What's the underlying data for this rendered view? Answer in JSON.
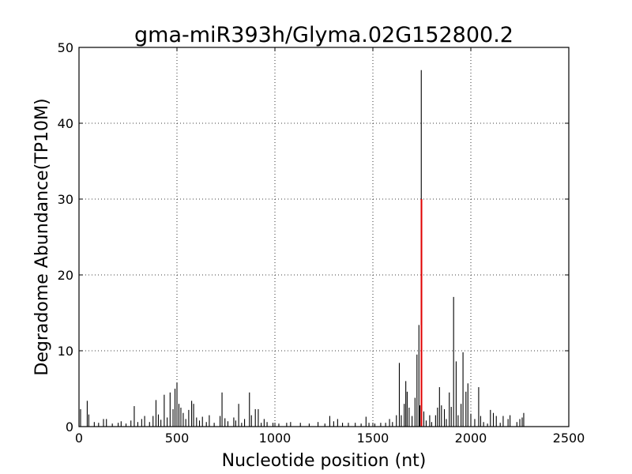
{
  "chart_data": {
    "type": "bar",
    "title": "gma-miR393h/Glyma.02G152800.2",
    "xlabel": "Nucleotide position (nt)",
    "ylabel": "Degradome Abundance(TP10M)",
    "xlim": [
      0,
      2500
    ],
    "ylim": [
      0,
      50
    ],
    "xticks": [
      0,
      500,
      1000,
      1500,
      2000,
      2500
    ],
    "yticks": [
      0,
      10,
      20,
      30,
      40,
      50
    ],
    "grid": true,
    "series": [
      {
        "color": "#000000",
        "points": [
          [
            8,
            2.3
          ],
          [
            42,
            3.4
          ],
          [
            50,
            1.6
          ],
          [
            78,
            0.6
          ],
          [
            100,
            0.5
          ],
          [
            125,
            1.0
          ],
          [
            140,
            1.0
          ],
          [
            170,
            0.4
          ],
          [
            200,
            0.5
          ],
          [
            215,
            0.7
          ],
          [
            240,
            0.4
          ],
          [
            265,
            0.8
          ],
          [
            282,
            2.7
          ],
          [
            300,
            0.6
          ],
          [
            320,
            1.0
          ],
          [
            335,
            1.4
          ],
          [
            360,
            0.6
          ],
          [
            378,
            1.4
          ],
          [
            393,
            3.5
          ],
          [
            405,
            1.6
          ],
          [
            418,
            0.9
          ],
          [
            435,
            4.2
          ],
          [
            450,
            1.2
          ],
          [
            465,
            4.5
          ],
          [
            480,
            2.3
          ],
          [
            490,
            5.0
          ],
          [
            500,
            5.8
          ],
          [
            510,
            3.0
          ],
          [
            520,
            2.5
          ],
          [
            532,
            1.8
          ],
          [
            545,
            1.0
          ],
          [
            560,
            2.2
          ],
          [
            575,
            3.4
          ],
          [
            585,
            3.0
          ],
          [
            600,
            1.2
          ],
          [
            615,
            0.8
          ],
          [
            630,
            1.3
          ],
          [
            650,
            0.6
          ],
          [
            665,
            1.5
          ],
          [
            690,
            0.5
          ],
          [
            720,
            1.4
          ],
          [
            730,
            4.5
          ],
          [
            745,
            1.1
          ],
          [
            760,
            0.7
          ],
          [
            790,
            1.2
          ],
          [
            800,
            0.8
          ],
          [
            815,
            3.0
          ],
          [
            830,
            0.5
          ],
          [
            845,
            1.0
          ],
          [
            870,
            4.5
          ],
          [
            880,
            1.5
          ],
          [
            900,
            2.3
          ],
          [
            915,
            2.3
          ],
          [
            930,
            0.5
          ],
          [
            945,
            1.0
          ],
          [
            960,
            0.6
          ],
          [
            990,
            0.5
          ],
          [
            1020,
            0.4
          ],
          [
            1060,
            0.5
          ],
          [
            1080,
            0.6
          ],
          [
            1130,
            0.5
          ],
          [
            1175,
            0.4
          ],
          [
            1220,
            0.6
          ],
          [
            1255,
            0.4
          ],
          [
            1280,
            1.4
          ],
          [
            1300,
            0.7
          ],
          [
            1320,
            1.0
          ],
          [
            1345,
            0.5
          ],
          [
            1375,
            0.5
          ],
          [
            1410,
            0.5
          ],
          [
            1440,
            0.4
          ],
          [
            1465,
            1.3
          ],
          [
            1480,
            0.5
          ],
          [
            1510,
            0.4
          ],
          [
            1540,
            0.5
          ],
          [
            1565,
            0.5
          ],
          [
            1585,
            1.0
          ],
          [
            1600,
            0.6
          ],
          [
            1620,
            1.5
          ],
          [
            1635,
            8.4
          ],
          [
            1645,
            1.5
          ],
          [
            1660,
            3.0
          ],
          [
            1668,
            6.0
          ],
          [
            1675,
            4.6
          ],
          [
            1685,
            2.5
          ],
          [
            1700,
            1.4
          ],
          [
            1715,
            3.8
          ],
          [
            1725,
            9.5
          ],
          [
            1735,
            13.4
          ],
          [
            1740,
            2.8
          ],
          [
            1747,
            47.0
          ],
          [
            1760,
            2.0
          ],
          [
            1772,
            0.8
          ],
          [
            1790,
            1.5
          ],
          [
            1800,
            0.6
          ],
          [
            1820,
            1.5
          ],
          [
            1830,
            2.5
          ],
          [
            1840,
            5.2
          ],
          [
            1850,
            2.8
          ],
          [
            1865,
            2.3
          ],
          [
            1875,
            1.0
          ],
          [
            1890,
            4.5
          ],
          [
            1900,
            2.6
          ],
          [
            1912,
            17.1
          ],
          [
            1925,
            8.6
          ],
          [
            1935,
            1.5
          ],
          [
            1950,
            3.0
          ],
          [
            1960,
            9.8
          ],
          [
            1975,
            4.6
          ],
          [
            1985,
            5.7
          ],
          [
            2000,
            1.7
          ],
          [
            2020,
            1.0
          ],
          [
            2040,
            5.2
          ],
          [
            2050,
            1.4
          ],
          [
            2065,
            0.6
          ],
          [
            2085,
            0.4
          ],
          [
            2100,
            2.2
          ],
          [
            2115,
            1.8
          ],
          [
            2130,
            1.4
          ],
          [
            2150,
            0.5
          ],
          [
            2165,
            1.4
          ],
          [
            2190,
            1.0
          ],
          [
            2200,
            1.5
          ],
          [
            2235,
            0.6
          ],
          [
            2250,
            1.0
          ],
          [
            2262,
            1.2
          ],
          [
            2270,
            1.8
          ]
        ]
      },
      {
        "color": "#e00000",
        "points": [
          [
            1748,
            30.0
          ]
        ]
      }
    ]
  }
}
